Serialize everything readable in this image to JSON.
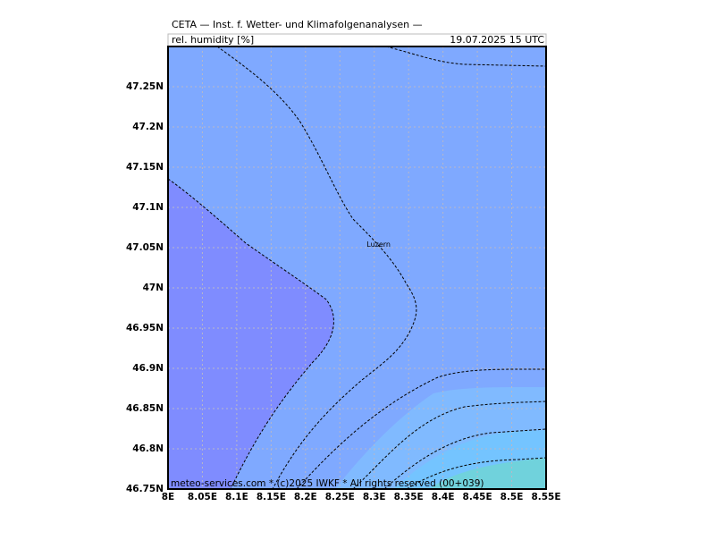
{
  "header": {
    "title": "CETA — Inst. f. Wetter- und Klimafolgenanalysen —",
    "field": "rel. humidity [%]",
    "date": "19.07.2025 15 UTC"
  },
  "map": {
    "xlim": [
      8,
      8.55
    ],
    "ylim": [
      46.75,
      47.3
    ],
    "xticks": [
      {
        "value": 8,
        "label": "8E"
      },
      {
        "value": 8.05,
        "label": "8.05E"
      },
      {
        "value": 8.1,
        "label": "8.1E"
      },
      {
        "value": 8.15,
        "label": "8.15E"
      },
      {
        "value": 8.2,
        "label": "8.2E"
      },
      {
        "value": 8.25,
        "label": "8.25E"
      },
      {
        "value": 8.3,
        "label": "8.3E"
      },
      {
        "value": 8.35,
        "label": "8.35E"
      },
      {
        "value": 8.4,
        "label": "8.4E"
      },
      {
        "value": 8.45,
        "label": "8.45E"
      },
      {
        "value": 8.5,
        "label": "8.5E"
      },
      {
        "value": 8.55,
        "label": "8.55E"
      }
    ],
    "yticks": [
      {
        "value": 46.75,
        "label": "46.75N"
      },
      {
        "value": 46.8,
        "label": "46.8N"
      },
      {
        "value": 46.85,
        "label": "46.85N"
      },
      {
        "value": 46.9,
        "label": "46.9N"
      },
      {
        "value": 46.95,
        "label": "46.95N"
      },
      {
        "value": 47,
        "label": "47N"
      },
      {
        "value": 47.05,
        "label": "47.05N"
      },
      {
        "value": 47.1,
        "label": "47.1N"
      },
      {
        "value": 47.15,
        "label": "47.15N"
      },
      {
        "value": 47.2,
        "label": "47.2N"
      },
      {
        "value": 47.25,
        "label": "47.25N"
      }
    ],
    "cities": [
      {
        "label": "Luzern",
        "lon": 8.289,
        "lat": 47.054
      }
    ]
  },
  "footer": "meteo-services.com * (c)2025 IWKF * All rights reserved (00+039)"
}
